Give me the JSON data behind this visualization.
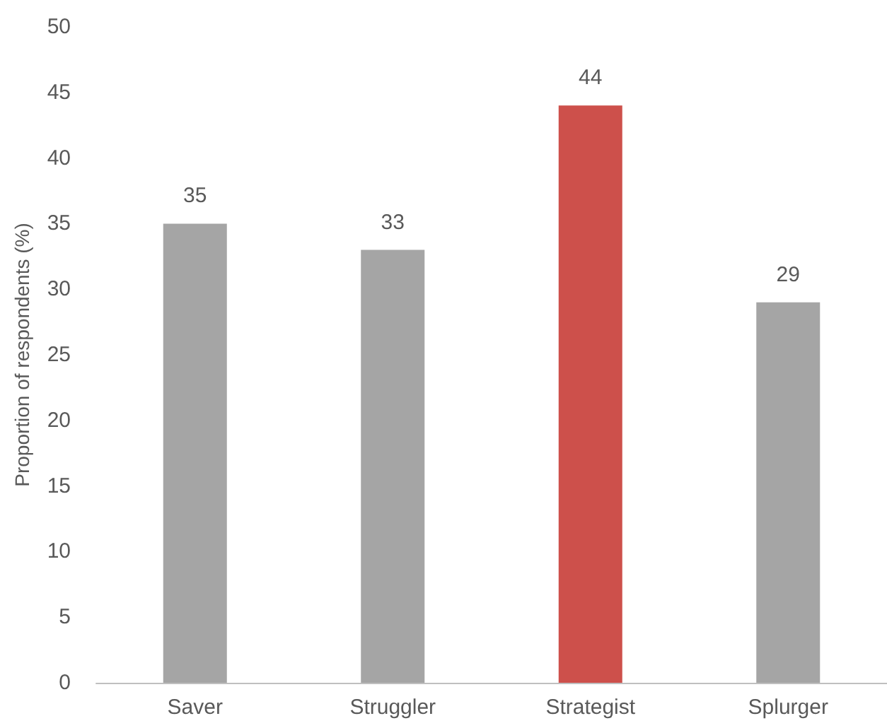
{
  "chart_data": {
    "type": "bar",
    "ylabel": "Proportion of respondents (%)",
    "categories": [
      "Saver",
      "Struggler",
      "Strategist",
      "Splurger"
    ],
    "values": [
      35,
      33,
      44,
      29
    ],
    "colors": [
      "#a5a5a5",
      "#a5a5a5",
      "#cd504b",
      "#a5a5a5"
    ],
    "ylim": [
      0,
      50
    ],
    "yticks": [
      0,
      5,
      10,
      15,
      20,
      25,
      30,
      35,
      40,
      45,
      50
    ],
    "data_labels": true
  }
}
